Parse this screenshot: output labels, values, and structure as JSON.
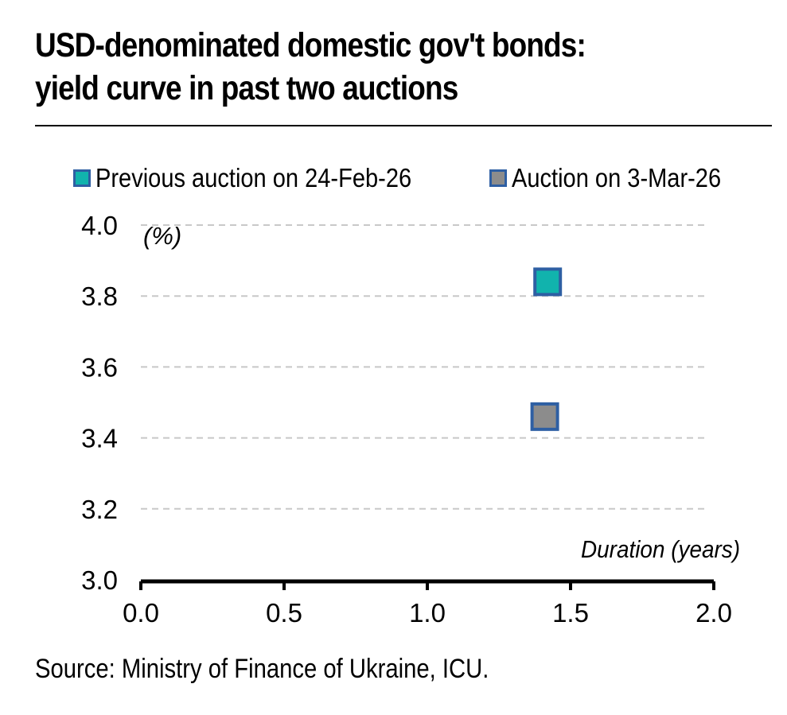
{
  "title_line1": "USD-denominated domestic gov't bonds:",
  "title_line2": "yield curve in past two auctions",
  "source": "Source: Ministry of Finance of Ukraine, ICU.",
  "colors": {
    "prev_fill": "#11b3ad",
    "curr_fill": "#8c8c8c",
    "marker_border": "#2e5fa3",
    "grid": "#c8c8c8",
    "axis": "#000000"
  },
  "chart_data": {
    "type": "scatter",
    "title": "USD-denominated domestic gov't bonds: yield curve in past two auctions",
    "xlabel": "Duration (years)",
    "ylabel": "(%)",
    "xlim": [
      0.0,
      2.0
    ],
    "ylim": [
      3.0,
      4.0
    ],
    "x_ticks": [
      "0.0",
      "0.5",
      "1.0",
      "1.5",
      "2.0"
    ],
    "y_ticks": [
      "3.0",
      "3.2",
      "3.4",
      "3.6",
      "3.8",
      "4.0"
    ],
    "grid": "horizontal-dashed",
    "legend_position": "top",
    "series": [
      {
        "name": "Previous auction on 24-Feb-26",
        "points": [
          {
            "x": 1.42,
            "y": 3.84
          }
        ]
      },
      {
        "name": "Auction on 3-Mar-26",
        "points": [
          {
            "x": 1.41,
            "y": 3.46
          }
        ]
      }
    ]
  }
}
